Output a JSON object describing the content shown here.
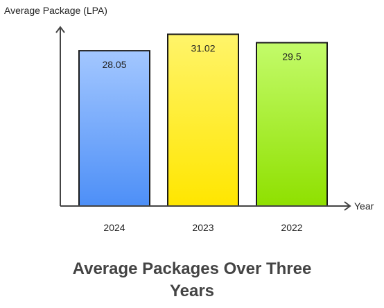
{
  "chart_data": {
    "type": "bar",
    "title_lines": [
      "Average Packages Over Three",
      "Years"
    ],
    "xlabel": "Year",
    "ylabel": "Average Package (LPA)",
    "categories": [
      "2024",
      "2023",
      "2022"
    ],
    "values": [
      28.05,
      31.02,
      29.5
    ],
    "value_labels": [
      "28.05",
      "31.02",
      "29.5"
    ],
    "ylim": [
      0,
      32.2
    ],
    "grid": false,
    "legend": "none",
    "bar_colors": [
      {
        "top": "#a3c7ff",
        "bottom": "#4d8ff7"
      },
      {
        "top": "#fff46a",
        "bottom": "#ffe600"
      },
      {
        "top": "#c3fb6a",
        "bottom": "#8fe000"
      }
    ],
    "bar_stroke": "#1a1a1a",
    "axis_color": "#444444"
  }
}
